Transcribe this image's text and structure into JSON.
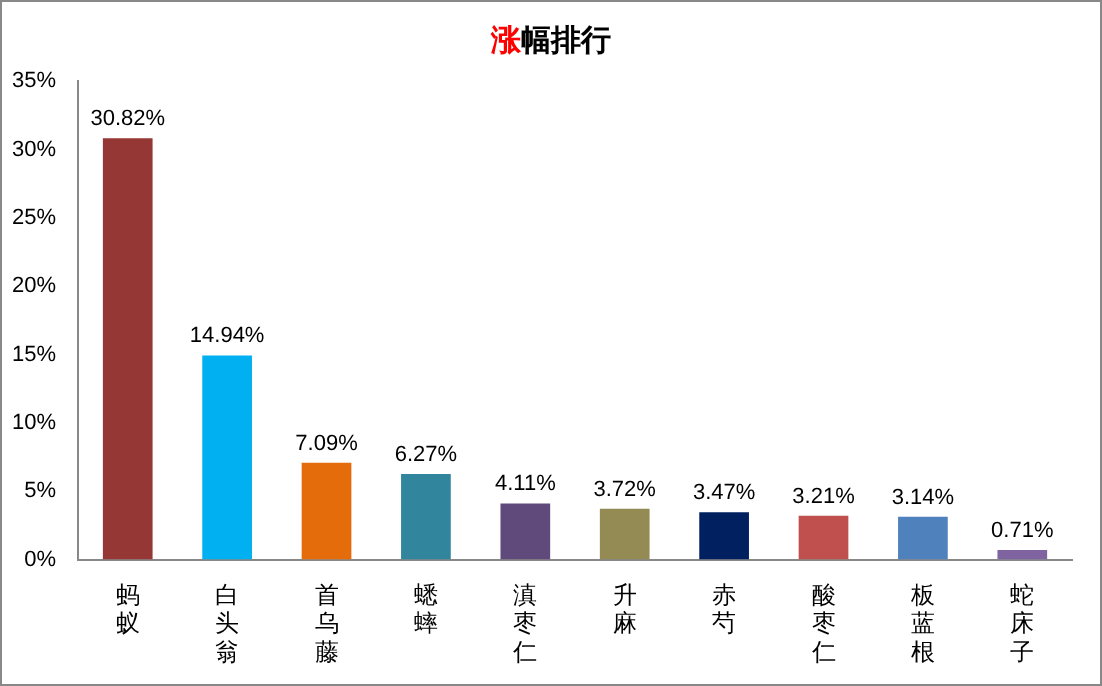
{
  "chart_data": {
    "type": "bar",
    "title": "涨幅排行",
    "categories": [
      "蚂蚁",
      "白头翁",
      "首乌藤",
      "蟋蟀",
      "滇枣仁",
      "升麻",
      "赤芍",
      "酸枣仁",
      "板蓝根",
      "蛇床子"
    ],
    "values": [
      30.82,
      14.94,
      7.09,
      6.27,
      4.11,
      3.72,
      3.47,
      3.21,
      3.14,
      0.71
    ],
    "colors": [
      "#953735",
      "#00b0f0",
      "#e46c0a",
      "#31859c",
      "#604a7b",
      "#948a54",
      "#002060",
      "#c0504d",
      "#4f81bd",
      "#8064a2"
    ],
    "value_labels": [
      "30.82%",
      "14.94%",
      "7.09%",
      "6.27%",
      "4.11%",
      "3.72%",
      "3.47%",
      "3.21%",
      "3.14%",
      "0.71%"
    ],
    "ylim": [
      0,
      35
    ],
    "yticks": [
      {
        "value": 0,
        "label": "0%"
      },
      {
        "value": 5,
        "label": "5%"
      },
      {
        "value": 10,
        "label": "10%"
      },
      {
        "value": 15,
        "label": "15%"
      },
      {
        "value": 20,
        "label": "20%"
      },
      {
        "value": 25,
        "label": "25%"
      },
      {
        "value": 30,
        "label": "30%"
      },
      {
        "value": 35,
        "label": "35%"
      }
    ],
    "grid": false,
    "legend": false
  }
}
